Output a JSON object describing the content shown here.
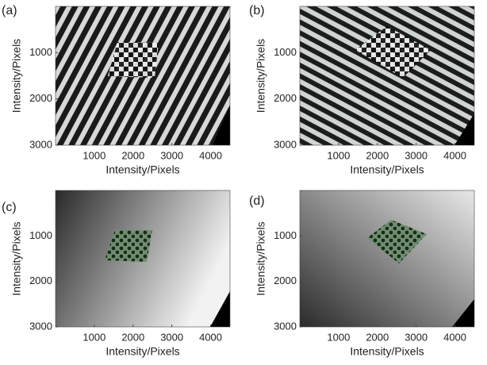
{
  "chart_data": [
    {
      "type": "image",
      "label": "(a)",
      "xlabel": "Intensity/Pixels",
      "ylabel": "Intensity/Pixels",
      "xlim": [
        0,
        4500
      ],
      "ylim": [
        0,
        3000
      ],
      "y_inverted": true,
      "xticks": [
        1000,
        2000,
        3000,
        4000
      ],
      "yticks": [
        1000,
        2000,
        3000
      ]
    },
    {
      "type": "image",
      "label": "(b)",
      "xlabel": "Intensity/Pixels",
      "ylabel": "Intensity/Pixels",
      "xlim": [
        0,
        4500
      ],
      "ylim": [
        0,
        3000
      ],
      "y_inverted": true,
      "xticks": [
        1000,
        2000,
        3000,
        4000
      ],
      "yticks": [
        1000,
        2000,
        3000
      ]
    },
    {
      "type": "image",
      "label": "(c)",
      "xlabel": "Intensity/Pixels",
      "ylabel": "Intensity/Pixels",
      "xlim": [
        0,
        4500
      ],
      "ylim": [
        0,
        3000
      ],
      "y_inverted": true,
      "xticks": [
        1000,
        2000,
        3000,
        4000
      ],
      "yticks": [
        1000,
        2000,
        3000
      ]
    },
    {
      "type": "image",
      "label": "(d)",
      "xlabel": "Intensity/Pixels",
      "ylabel": "Intensity/Pixels",
      "xlim": [
        0,
        4500
      ],
      "ylim": [
        0,
        3000
      ],
      "y_inverted": true,
      "xticks": [
        1000,
        2000,
        3000,
        4000
      ],
      "yticks": [
        1000,
        2000,
        3000
      ]
    }
  ]
}
